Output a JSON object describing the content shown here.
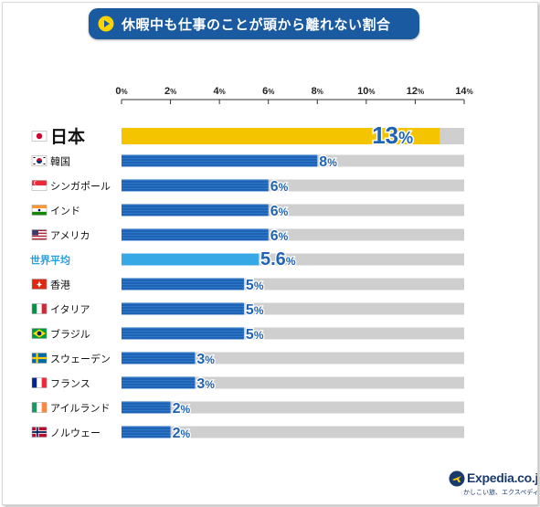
{
  "title": "休暇中も仕事のことが頭から離れない割合",
  "brand": {
    "name": "Expedia.co.jp",
    "tagline": "かしこい旅、エクスペディア"
  },
  "colors": {
    "title_bg": "#1a5aa0",
    "bar_default": "#1e63b4",
    "bar_highlight": "#f5c400",
    "bar_average": "#36a8e6",
    "track": "#cfcfcf",
    "value_text": "#1e63b4"
  },
  "chart_data": {
    "type": "bar",
    "orientation": "horizontal",
    "title": "休暇中も仕事のことが頭から離れない割合",
    "xlim": [
      0,
      14
    ],
    "xticks": [
      "0%",
      "2%",
      "4%",
      "6%",
      "8%",
      "10%",
      "12%",
      "14%"
    ],
    "unit": "%",
    "grid": false,
    "categories": [
      "日本",
      "韓国",
      "シンガポール",
      "インド",
      "アメリカ",
      "世界平均",
      "香港",
      "イタリア",
      "ブラジル",
      "スウェーデン",
      "フランス",
      "アイルランド",
      "ノルウェー"
    ],
    "values": [
      13,
      8,
      6,
      6,
      6,
      5.6,
      5,
      5,
      5,
      3,
      3,
      2,
      2
    ],
    "value_labels": [
      "13%",
      "8%",
      "6%",
      "6%",
      "6%",
      "5.6%",
      "5%",
      "5%",
      "5%",
      "3%",
      "3%",
      "2%",
      "2%"
    ],
    "flags": [
      "japan-flag-icon",
      "korea-flag-icon",
      "singapore-flag-icon",
      "india-flag-icon",
      "usa-flag-icon",
      null,
      "hongkong-flag-icon",
      "italy-flag-icon",
      "brazil-flag-icon",
      "sweden-flag-icon",
      "france-flag-icon",
      "ireland-flag-icon",
      "norway-flag-icon"
    ],
    "highlight": "日本",
    "average": "世界平均"
  }
}
